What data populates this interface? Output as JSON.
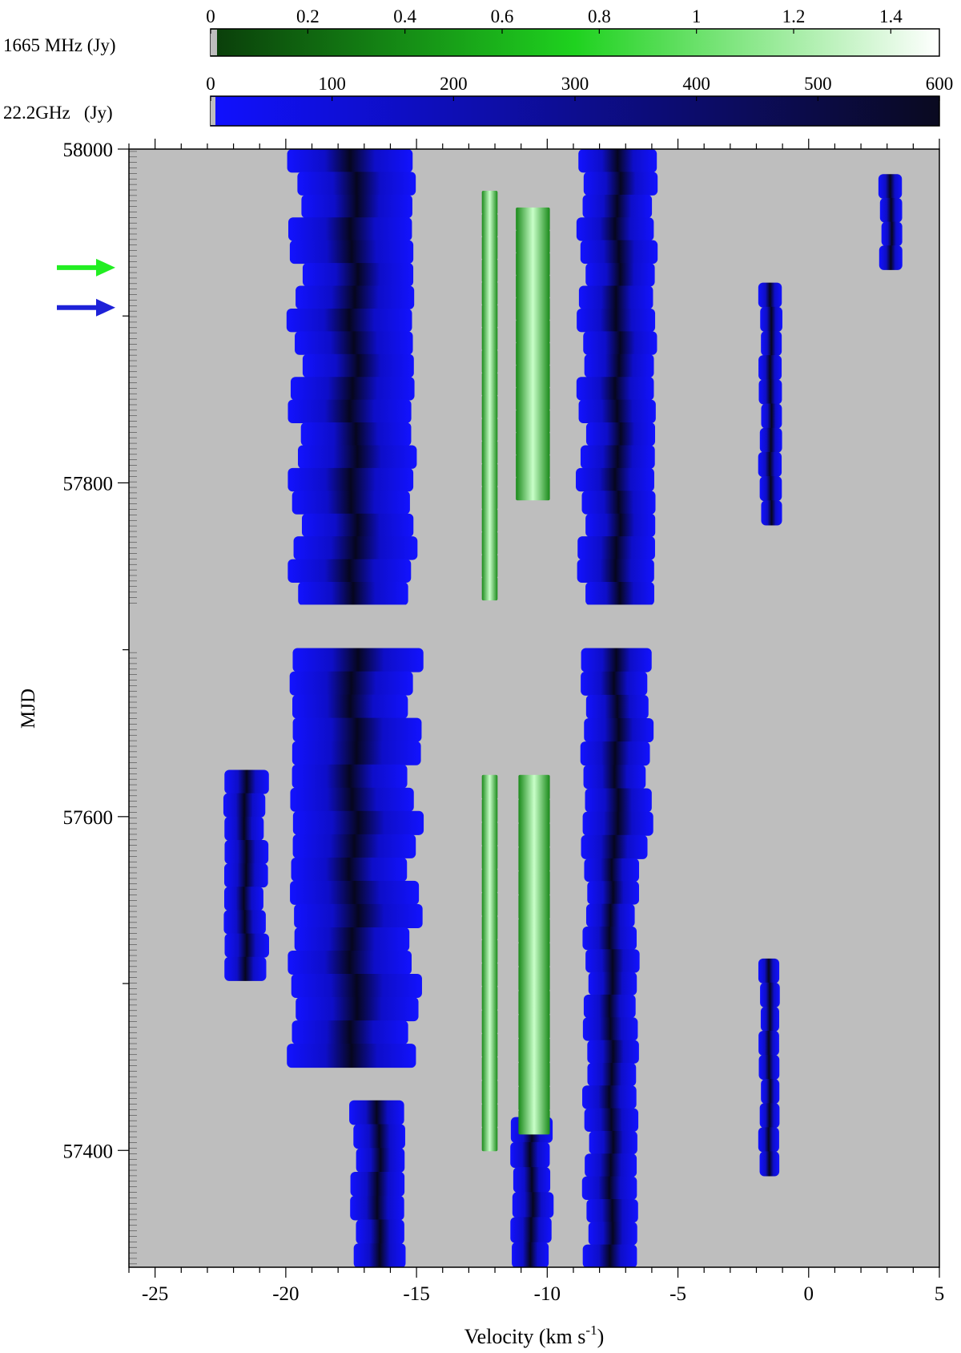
{
  "chart_data": {
    "type": "heatmap",
    "xlabel": "Velocity (km s",
    "xlabel_sup": "-1",
    "xlabel_close": ")",
    "ylabel": "MJD",
    "xlim": [
      -26,
      5
    ],
    "ylim": [
      57330,
      58000
    ],
    "x_ticks": [
      -25,
      -20,
      -15,
      -10,
      -5,
      0,
      5
    ],
    "x_tick_labels": [
      "-25",
      "-20",
      "-15",
      "-10",
      "-5",
      "0",
      "5"
    ],
    "y_ticks": [
      57400,
      57600,
      57800,
      58000
    ],
    "y_tick_labels": [
      "57400",
      "57600",
      "57800",
      "58000"
    ],
    "background_color": "#bebebe",
    "data_gap_mjd": [
      57727,
      57701
    ],
    "colorbars": [
      {
        "label": "1665 MHz  (Jy)",
        "range": [
          0,
          1.5
        ],
        "ticks": [
          0,
          0.2,
          0.4,
          0.6,
          0.8,
          1,
          1.2,
          1.4
        ],
        "tick_labels": [
          "0",
          "0.2",
          "0.4",
          "0.6",
          "0.8",
          "1",
          "1.2",
          "1.4"
        ],
        "colors": [
          "#0a3d0a",
          "#1fd21f",
          "#ffffff"
        ]
      },
      {
        "label": "22.2GHz   (Jy)",
        "range": [
          0,
          600
        ],
        "ticks": [
          0,
          100,
          200,
          300,
          400,
          500,
          600
        ],
        "tick_labels": [
          "0",
          "100",
          "200",
          "300",
          "400",
          "500",
          "600"
        ],
        "colors": [
          "#1010ff",
          "#0a0a20"
        ]
      }
    ],
    "markers": [
      {
        "mjd": 57929,
        "color": "#22ee22"
      },
      {
        "mjd": 57905,
        "color": "#1e22d8"
      }
    ],
    "water_channels": [
      {
        "v": [
          -19.8,
          -15.0
        ],
        "mjd": [
          57727,
          58000
        ],
        "peak_v": -16.7
      },
      {
        "v": [
          -19.9,
          -14.9
        ],
        "mjd": [
          57450,
          57701
        ],
        "peak_v": -16.5
      },
      {
        "v": [
          -8.8,
          -5.8
        ],
        "mjd": [
          57727,
          58000
        ],
        "peak_v": -7.6
      },
      {
        "v": [
          -8.7,
          -6.0
        ],
        "mjd": [
          57575,
          57701
        ],
        "peak_v": -7.6
      },
      {
        "v": [
          -8.6,
          -6.5
        ],
        "mjd": [
          57330,
          57575
        ],
        "peak_v": -7.6
      },
      {
        "v": [
          -17.5,
          -15.4
        ],
        "mjd": [
          57330,
          57430
        ],
        "peak_v": -16.8
      },
      {
        "v": [
          -11.4,
          -9.8
        ],
        "mjd": [
          57330,
          57420
        ],
        "peak_v": -10.6
      },
      {
        "v": [
          -1.9,
          -1.0
        ],
        "mjd": [
          57775,
          57920
        ],
        "peak_v": -1.4
      },
      {
        "v": [
          -1.9,
          -1.1
        ],
        "mjd": [
          57385,
          57515
        ],
        "peak_v": -1.5
      },
      {
        "v": [
          2.7,
          3.6
        ],
        "mjd": [
          57928,
          57985
        ],
        "peak_v": 3.1
      },
      {
        "v": [
          -22.4,
          -20.7
        ],
        "mjd": [
          57502,
          57628
        ],
        "peak_v": -21.6
      }
    ],
    "oh_channels": [
      {
        "v": [
          -12.5,
          -11.9
        ],
        "mjd": [
          57730,
          57975
        ],
        "peak_v": -12.2
      },
      {
        "v": [
          -12.5,
          -11.9
        ],
        "mjd": [
          57400,
          57625
        ],
        "peak_v": -12.2
      },
      {
        "v": [
          -11.2,
          -9.9
        ],
        "mjd": [
          57790,
          57965
        ],
        "peak_v": -10.5
      },
      {
        "v": [
          -11.1,
          -9.9
        ],
        "mjd": [
          57410,
          57625
        ],
        "peak_v": -10.4
      }
    ]
  }
}
